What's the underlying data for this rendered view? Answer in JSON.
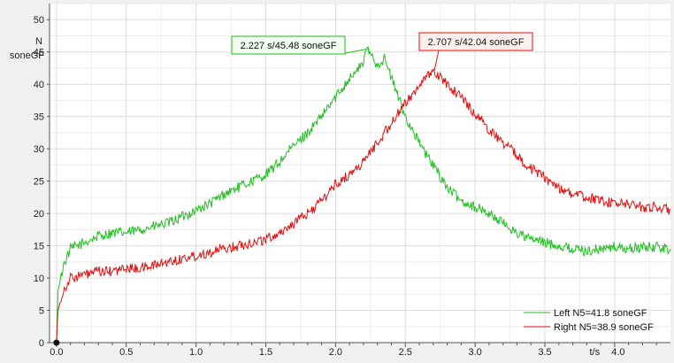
{
  "chart_data": {
    "type": "line",
    "xlabel": "t/s",
    "ylabel_line1": "N",
    "ylabel_line2": "soneGF",
    "xlim": [
      -0.05,
      4.4
    ],
    "ylim": [
      0,
      52.5
    ],
    "x_ticks": [
      {
        "value": 0.0,
        "label": "0.0"
      },
      {
        "value": 0.5,
        "label": "0.5"
      },
      {
        "value": 1.0,
        "label": "1.0"
      },
      {
        "value": 1.5,
        "label": "1.5"
      },
      {
        "value": 2.0,
        "label": "2.0"
      },
      {
        "value": 2.5,
        "label": "2.5"
      },
      {
        "value": 3.0,
        "label": "3.0"
      },
      {
        "value": 3.5,
        "label": "3.5"
      },
      {
        "value": 4.0,
        "label": "4.0"
      }
    ],
    "y_ticks": [
      {
        "value": 0,
        "label": "0"
      },
      {
        "value": 5,
        "label": "5"
      },
      {
        "value": 10,
        "label": "10"
      },
      {
        "value": 15,
        "label": "15"
      },
      {
        "value": 20,
        "label": "20"
      },
      {
        "value": 25,
        "label": "25"
      },
      {
        "value": 30,
        "label": "30"
      },
      {
        "value": 35,
        "label": "35"
      },
      {
        "value": 40,
        "label": "40"
      },
      {
        "value": 45,
        "label": "45"
      },
      {
        "value": 50,
        "label": "50"
      }
    ],
    "grid": true,
    "legend_position": "bottom-right",
    "series": [
      {
        "name": "Left N5=41.8 soneGF",
        "color": "#1fbf1f",
        "x": [
          0.0,
          0.01,
          0.05,
          0.1,
          0.2,
          0.3,
          0.4,
          0.5,
          0.6,
          0.7,
          0.8,
          0.9,
          1.0,
          1.1,
          1.2,
          1.3,
          1.4,
          1.5,
          1.6,
          1.7,
          1.8,
          1.9,
          2.0,
          2.05,
          2.1,
          2.15,
          2.2,
          2.227,
          2.3,
          2.35,
          2.4,
          2.45,
          2.5,
          2.55,
          2.6,
          2.65,
          2.7,
          2.8,
          2.9,
          3.0,
          3.1,
          3.2,
          3.3,
          3.4,
          3.5,
          3.6,
          3.7,
          3.8,
          3.9,
          4.0,
          4.1,
          4.2,
          4.3,
          4.4
        ],
        "y": [
          0,
          8,
          12,
          14.5,
          15.5,
          16.5,
          17,
          17,
          17.5,
          18,
          18.5,
          19.5,
          20.5,
          21.5,
          23,
          24,
          25,
          26,
          28,
          30.5,
          32.5,
          35,
          38,
          39.5,
          41,
          42,
          43.5,
          45.48,
          43,
          44,
          41,
          38,
          35,
          33,
          31,
          29,
          27.5,
          24,
          22,
          21,
          20,
          18.5,
          17,
          16,
          15.5,
          15,
          14.5,
          14.2,
          14.5,
          14.8,
          14.5,
          14.8,
          14.8,
          14.5
        ]
      },
      {
        "name": "Right N5=38.9 soneGF",
        "color": "#e01010",
        "x": [
          0.0,
          0.01,
          0.05,
          0.1,
          0.2,
          0.3,
          0.4,
          0.5,
          0.6,
          0.7,
          0.8,
          0.9,
          1.0,
          1.1,
          1.2,
          1.3,
          1.4,
          1.5,
          1.6,
          1.7,
          1.8,
          1.9,
          2.0,
          2.1,
          2.2,
          2.3,
          2.4,
          2.5,
          2.6,
          2.707,
          2.75,
          2.8,
          2.9,
          3.0,
          3.1,
          3.2,
          3.3,
          3.4,
          3.5,
          3.6,
          3.7,
          3.8,
          3.9,
          4.0,
          4.1,
          4.2,
          4.3,
          4.4
        ],
        "y": [
          0,
          5,
          8,
          10,
          10.5,
          11,
          11,
          11.5,
          11.5,
          12,
          12.5,
          13,
          13.5,
          14,
          14.5,
          15,
          15.5,
          16,
          17,
          18.5,
          20,
          22,
          24.5,
          26,
          28,
          31,
          34,
          37,
          40,
          42.04,
          41,
          40,
          38,
          35.5,
          33,
          31,
          29,
          27,
          25.5,
          24,
          23,
          22.5,
          22,
          21.5,
          21.5,
          21,
          21,
          20.5
        ]
      }
    ],
    "annotations": [
      {
        "text": "2.227 s/45.48 soneGF",
        "series": 0,
        "x": 2.227,
        "y": 45.48,
        "border": "#1fbf1f",
        "bg": "#f0fff0"
      },
      {
        "text": "2.707 s/42.04 soneGF",
        "series": 1,
        "x": 2.707,
        "y": 42.04,
        "border": "#e01010",
        "bg": "#fff0f0"
      }
    ]
  }
}
